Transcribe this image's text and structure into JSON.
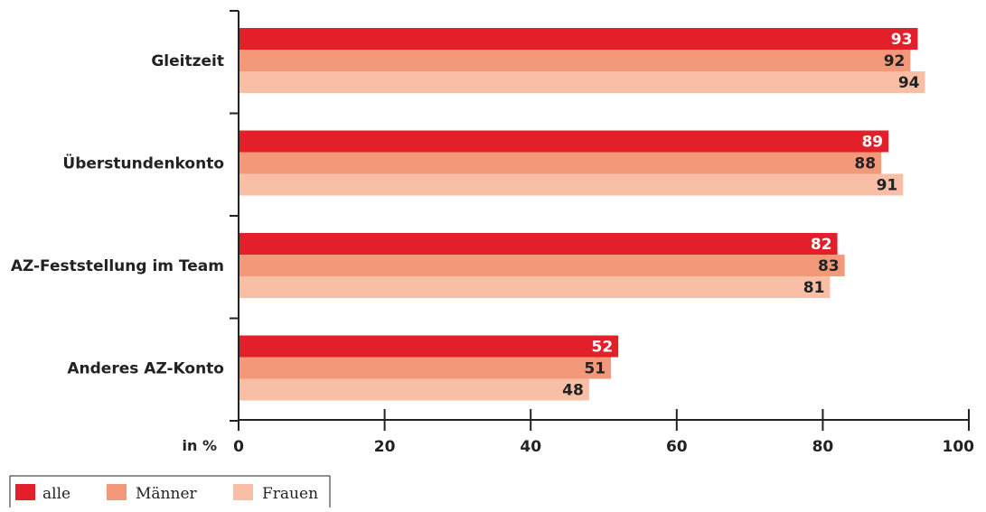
{
  "chart_data": {
    "type": "bar",
    "orientation": "horizontal",
    "categories": [
      "Gleitzeit",
      "Überstundenkonto",
      "AZ-Feststellung im Team",
      "Anderes AZ-Konto"
    ],
    "series": [
      {
        "name": "alle",
        "color": "#e3202a",
        "label_color": "#ffffff",
        "values": [
          93,
          89,
          82,
          52
        ]
      },
      {
        "name": "Männer",
        "color": "#f4987a",
        "label_color": "#222222",
        "values": [
          92,
          88,
          83,
          51
        ]
      },
      {
        "name": "Frauen",
        "color": "#f8bfa6",
        "label_color": "#222222",
        "values": [
          94,
          91,
          81,
          48
        ]
      }
    ],
    "xlim": [
      0,
      100
    ],
    "xticks": [
      "0",
      "20",
      "40",
      "60",
      "80",
      "100"
    ],
    "xlabel": "in %",
    "ylabel": "",
    "title": "",
    "grid": false,
    "legend": "bottom-left"
  }
}
